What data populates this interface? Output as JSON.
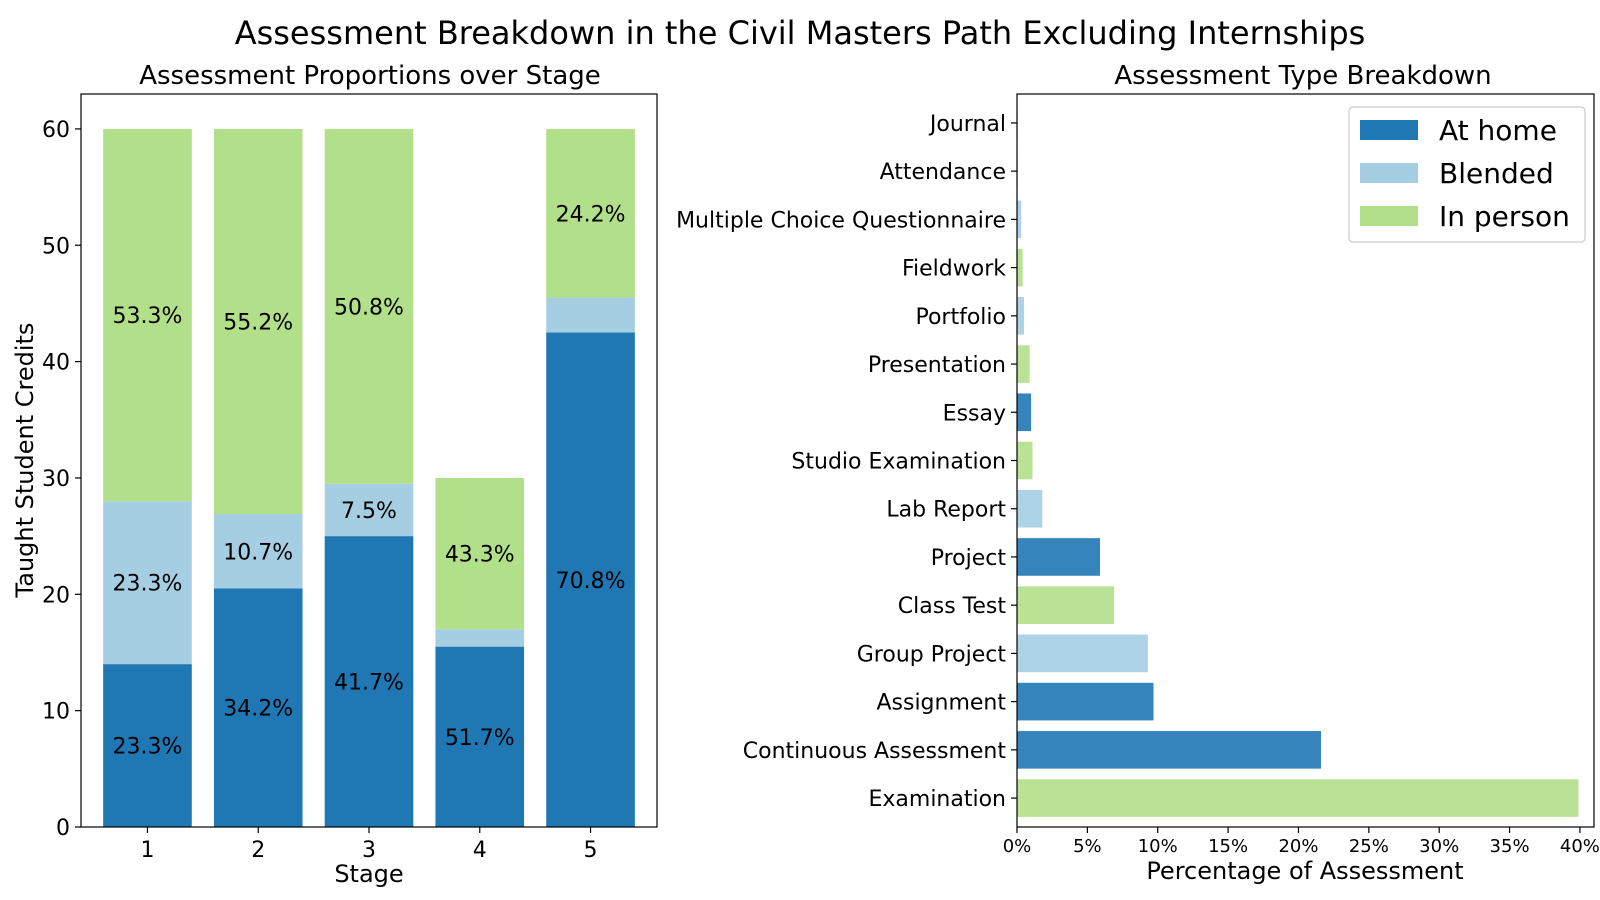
{
  "suptitle": "Assessment Breakdown in the  Civil Masters Path Excluding Internships",
  "chart_data": [
    {
      "type": "bar",
      "stacked": true,
      "title": "Assessment Proportions over Stage",
      "xlabel": "Stage",
      "ylabel": "Taught Student Credits",
      "categories": [
        "1",
        "2",
        "3",
        "4",
        "5"
      ],
      "ylim": [
        0,
        63
      ],
      "yticks": [
        "0",
        "10",
        "20",
        "30",
        "40",
        "50",
        "60"
      ],
      "series": [
        {
          "name": "At home",
          "color": "#1f77b4",
          "values": [
            14,
            20.5,
            25,
            15.5,
            42.5
          ],
          "labels": [
            "23.3%",
            "34.2%",
            "41.7%",
            "51.7%",
            "70.8%"
          ]
        },
        {
          "name": "Blended",
          "color": "#a6cee3",
          "values": [
            14,
            6.4,
            4.5,
            1.5,
            3
          ],
          "labels": [
            "23.3%",
            "10.7%",
            "7.5%",
            "",
            ""
          ]
        },
        {
          "name": "In person",
          "color": "#b2df8a",
          "values": [
            32,
            33.1,
            30.5,
            13,
            14.5
          ],
          "labels": [
            "53.3%",
            "55.2%",
            "50.8%",
            "43.3%",
            "24.2%"
          ]
        }
      ],
      "grid": false
    },
    {
      "type": "bar",
      "orientation": "horizontal",
      "title": "Assessment Type Breakdown",
      "xlabel": "Percentage of Assessment",
      "ylabel": "",
      "xlim": [
        0,
        41
      ],
      "xticks": [
        {
          "value": 0,
          "label": "0%"
        },
        {
          "value": 5,
          "label": "5%"
        },
        {
          "value": 10,
          "label": "10%"
        },
        {
          "value": 15,
          "label": "15%"
        },
        {
          "value": 20,
          "label": "20%"
        },
        {
          "value": 25,
          "label": "25%"
        },
        {
          "value": 30,
          "label": "30%"
        },
        {
          "value": 35,
          "label": "35%"
        },
        {
          "value": 40,
          "label": "40%"
        }
      ],
      "categories": [
        "Examination",
        "Continuous Assessment",
        "Assignment",
        "Group Project",
        "Class Test",
        "Project",
        "Lab Report",
        "Studio Examination",
        "Essay",
        "Presentation",
        "Portfolio",
        "Fieldwork",
        "Multiple Choice Questionnaire",
        "Attendance",
        "Journal"
      ],
      "values": [
        39.9,
        21.6,
        9.7,
        9.3,
        6.9,
        5.9,
        1.8,
        1.1,
        1.0,
        0.9,
        0.5,
        0.4,
        0.3,
        0.05,
        0.05
      ],
      "bar_types": [
        "In person",
        "At home",
        "At home",
        "Blended",
        "In person",
        "At home",
        "Blended",
        "In person",
        "At home",
        "In person",
        "Blended",
        "In person",
        "Blended",
        "Blended",
        "In person"
      ],
      "legend": {
        "position": "top-right",
        "entries": [
          {
            "label": "At home",
            "color": "#1f77b4"
          },
          {
            "label": "Blended",
            "color": "#a6cee3"
          },
          {
            "label": "In person",
            "color": "#b2df8a"
          }
        ]
      },
      "grid": false
    }
  ]
}
